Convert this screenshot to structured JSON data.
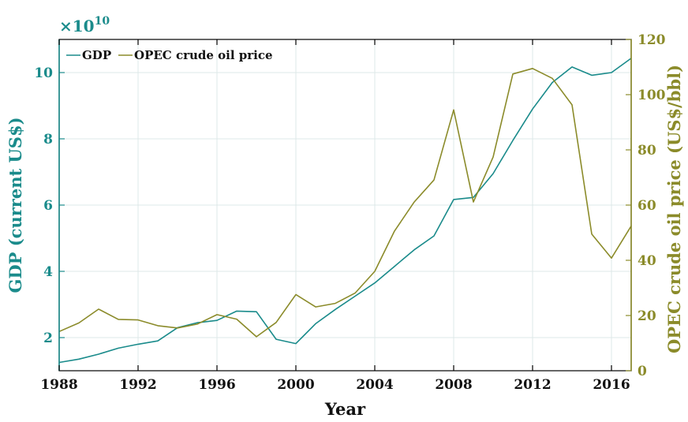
{
  "chart_data": {
    "type": "line",
    "xlabel": "Year",
    "ylabel_left": "GDP (current US$)",
    "ylabel_right": "OPEC crude oil price (US$/bbl)",
    "exponent_label": {
      "base": "×10",
      "power": "10"
    },
    "xlim": [
      1988,
      2017
    ],
    "ylim_left": [
      1.0,
      11.0
    ],
    "ylim_right": [
      0,
      120
    ],
    "x_ticks": [
      1988,
      1992,
      1996,
      2000,
      2004,
      2008,
      2012,
      2016
    ],
    "y_left_ticks": [
      2,
      4,
      6,
      8,
      10
    ],
    "y_right_ticks": [
      0,
      20,
      40,
      60,
      80,
      100,
      120
    ],
    "grid": true,
    "legend_position": "top-left",
    "colors": {
      "gdp": "#1a8b8b",
      "oil": "#8b8b2a",
      "grid": "#dde8e8",
      "axis": "#000000"
    },
    "x": [
      1988,
      1989,
      1990,
      1991,
      1992,
      1993,
      1994,
      1995,
      1996,
      1997,
      1998,
      1999,
      2000,
      2001,
      2002,
      2003,
      2004,
      2005,
      2006,
      2007,
      2008,
      2009,
      2010,
      2011,
      2012,
      2013,
      2014,
      2015,
      2016,
      2017
    ],
    "series": [
      {
        "name": "GDP",
        "axis": "left",
        "color": "#1a8b8b",
        "values": [
          1.25,
          1.35,
          1.5,
          1.68,
          1.8,
          1.9,
          2.3,
          2.45,
          2.52,
          2.8,
          2.78,
          1.95,
          1.82,
          2.42,
          2.85,
          3.25,
          3.65,
          4.15,
          4.65,
          5.07,
          6.17,
          6.23,
          6.95,
          7.95,
          8.9,
          9.7,
          10.17,
          9.92,
          10.0,
          10.43
        ]
      },
      {
        "name": "OPEC crude oil price",
        "axis": "right",
        "color": "#8b8b2a",
        "values": [
          14.2,
          17.3,
          22.3,
          18.6,
          18.4,
          16.3,
          15.5,
          16.9,
          20.3,
          18.7,
          12.3,
          17.5,
          27.6,
          23.1,
          24.4,
          28.1,
          36.0,
          50.6,
          61.1,
          69.1,
          94.5,
          61.1,
          77.4,
          107.5,
          109.5,
          105.9,
          96.3,
          49.5,
          40.8,
          52.4
        ]
      }
    ]
  }
}
